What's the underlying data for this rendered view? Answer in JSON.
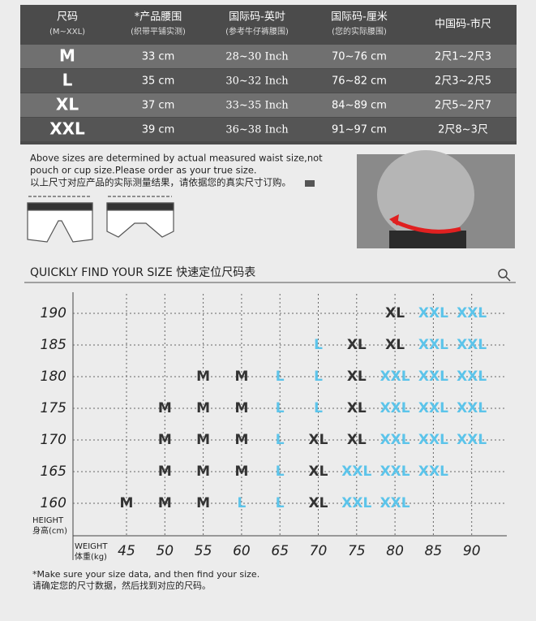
{
  "table": {
    "header": [
      {
        "title": "尺码",
        "subtitle": "(M~XXL)"
      },
      {
        "title": "*产品腰围",
        "subtitle": "(织带平铺实测)"
      },
      {
        "title": "国际码-英吋",
        "subtitle": "(参考牛仔裤腰围)"
      },
      {
        "title": "国际码-厘米",
        "subtitle": "(您的实际腰围)"
      },
      {
        "title": "中国码-市尺"
      }
    ],
    "rows": [
      [
        "M",
        "33 cm",
        "28~30 Inch",
        "70~76 cm",
        "2尺1~2尺3"
      ],
      [
        "L",
        "35 cm",
        "30~32 Inch",
        "76~82 cm",
        "2尺3~2尺5"
      ],
      [
        "XL",
        "37 cm",
        "33~35 Inch",
        "84~89 cm",
        "2尺5~2尺7"
      ],
      [
        "XXL",
        "39 cm",
        "36~38 Inch",
        "91~97 cm",
        "2尺8~3尺"
      ]
    ]
  },
  "note": {
    "lines": [
      "Above sizes are determined by actual measured waist size,not",
      "pouch or cup size.Please order as your true size.",
      "以上尺寸对应产品的实际测量结果，请依据您的真实尺寸订购。"
    ]
  },
  "finder": {
    "title": "QUICKLY FIND YOUR SIZE 快速定位尺码表",
    "height_label": "HEIGHT",
    "height_label_cn": "身高(cm)",
    "weight_label": "WEIGHT",
    "weight_label_cn": "体重(kg)",
    "heights": [
      "190",
      "185",
      "180",
      "175",
      "170",
      "165",
      "160"
    ],
    "weights": [
      "45",
      "50",
      "55",
      "60",
      "65",
      "70",
      "75",
      "80",
      "85",
      "90"
    ],
    "size_colors": {
      "M": "#333333",
      "L": "#5cc4ea",
      "XL": "#333333",
      "XXL": "#5cc4ea"
    },
    "cells": [
      [
        null,
        null,
        null,
        null,
        null,
        null,
        null,
        "XL",
        "XXL",
        "XXL"
      ],
      [
        null,
        null,
        null,
        null,
        null,
        "L",
        "XL",
        "XL",
        "XXL",
        "XXL"
      ],
      [
        null,
        null,
        "M",
        "M",
        "L",
        "L",
        "XL",
        "XXL",
        "XXL",
        "XXL"
      ],
      [
        null,
        "M",
        "M",
        "M",
        "L",
        "L",
        "XL",
        "XXL",
        "XXL",
        "XXL"
      ],
      [
        null,
        "M",
        "M",
        "M",
        "L",
        "XL",
        "XL",
        "XXL",
        "XXL",
        "XXL"
      ],
      [
        null,
        "M",
        "M",
        "M",
        "L",
        "XL",
        "XXL",
        "XXL",
        "XXL",
        null
      ],
      [
        "M",
        "M",
        "M",
        "L",
        "L",
        "XL",
        "XXL",
        "XXL",
        null,
        null
      ]
    ]
  },
  "footer": [
    "*Make sure your size data, and then find your size.",
    "请确定您的尺寸数据，然后找到对应的尺码。"
  ]
}
